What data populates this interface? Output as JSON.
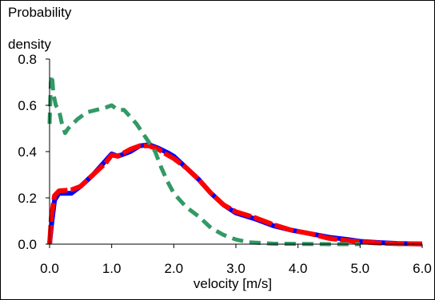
{
  "chart_data": {
    "type": "line",
    "title": "",
    "ylabel_lines": [
      "Probability",
      "density"
    ],
    "xlabel": "velocity [m/s]",
    "xlim": [
      0.0,
      6.0
    ],
    "ylim": [
      0.0,
      0.8
    ],
    "x_ticks": [
      "0.0",
      "1.0",
      "2.0",
      "3.0",
      "4.0",
      "5.0",
      "6.0"
    ],
    "y_ticks": [
      "0.0",
      "0.2",
      "0.4",
      "0.6",
      "0.8"
    ],
    "grid": false,
    "series": [
      {
        "color": "#0000ff",
        "style": "solid",
        "points": [
          [
            0.0,
            0.0
          ],
          [
            0.03,
            0.08
          ],
          [
            0.08,
            0.19
          ],
          [
            0.15,
            0.22
          ],
          [
            0.35,
            0.22
          ],
          [
            0.5,
            0.25
          ],
          [
            0.7,
            0.3
          ],
          [
            0.9,
            0.36
          ],
          [
            1.0,
            0.39
          ],
          [
            1.1,
            0.38
          ],
          [
            1.2,
            0.39
          ],
          [
            1.3,
            0.4
          ],
          [
            1.45,
            0.425
          ],
          [
            1.6,
            0.43
          ],
          [
            1.75,
            0.415
          ],
          [
            1.9,
            0.395
          ],
          [
            2.0,
            0.38
          ],
          [
            2.2,
            0.33
          ],
          [
            2.4,
            0.28
          ],
          [
            2.6,
            0.22
          ],
          [
            2.8,
            0.17
          ],
          [
            3.0,
            0.135
          ],
          [
            3.3,
            0.11
          ],
          [
            3.6,
            0.08
          ],
          [
            3.9,
            0.06
          ],
          [
            4.2,
            0.045
          ],
          [
            4.5,
            0.03
          ],
          [
            4.8,
            0.02
          ],
          [
            5.0,
            0.012
          ],
          [
            5.3,
            0.007
          ],
          [
            5.6,
            0.003
          ],
          [
            6.0,
            0.001
          ]
        ]
      },
      {
        "color": "#ff0000",
        "style": "dash",
        "points": [
          [
            0.0,
            0.0
          ],
          [
            0.03,
            0.12
          ],
          [
            0.08,
            0.21
          ],
          [
            0.15,
            0.23
          ],
          [
            0.35,
            0.235
          ],
          [
            0.5,
            0.25
          ],
          [
            0.7,
            0.3
          ],
          [
            0.9,
            0.35
          ],
          [
            1.0,
            0.385
          ],
          [
            1.1,
            0.38
          ],
          [
            1.2,
            0.395
          ],
          [
            1.3,
            0.41
          ],
          [
            1.45,
            0.425
          ],
          [
            1.6,
            0.425
          ],
          [
            1.75,
            0.41
          ],
          [
            1.9,
            0.385
          ],
          [
            2.0,
            0.37
          ],
          [
            2.2,
            0.33
          ],
          [
            2.4,
            0.28
          ],
          [
            2.6,
            0.22
          ],
          [
            2.8,
            0.17
          ],
          [
            3.0,
            0.14
          ],
          [
            3.3,
            0.115
          ],
          [
            3.6,
            0.085
          ],
          [
            3.9,
            0.06
          ],
          [
            4.2,
            0.045
          ],
          [
            4.5,
            0.025
          ],
          [
            4.8,
            0.015
          ],
          [
            5.0,
            0.01
          ],
          [
            5.3,
            0.005
          ],
          [
            5.6,
            0.002
          ],
          [
            6.0,
            0.001
          ]
        ]
      },
      {
        "color": "#339966",
        "style": "dash",
        "points": [
          [
            0.0,
            0.52
          ],
          [
            0.02,
            0.7
          ],
          [
            0.04,
            0.73
          ],
          [
            0.06,
            0.65
          ],
          [
            0.1,
            0.6
          ],
          [
            0.15,
            0.58
          ],
          [
            0.2,
            0.52
          ],
          [
            0.25,
            0.48
          ],
          [
            0.3,
            0.5
          ],
          [
            0.45,
            0.54
          ],
          [
            0.6,
            0.57
          ],
          [
            0.75,
            0.58
          ],
          [
            0.9,
            0.59
          ],
          [
            1.0,
            0.6
          ],
          [
            1.1,
            0.58
          ],
          [
            1.2,
            0.58
          ],
          [
            1.3,
            0.55
          ],
          [
            1.4,
            0.52
          ],
          [
            1.5,
            0.48
          ],
          [
            1.6,
            0.44
          ],
          [
            1.7,
            0.4
          ],
          [
            1.8,
            0.33
          ],
          [
            1.9,
            0.27
          ],
          [
            2.0,
            0.22
          ],
          [
            2.2,
            0.16
          ],
          [
            2.4,
            0.12
          ],
          [
            2.6,
            0.07
          ],
          [
            2.8,
            0.04
          ],
          [
            3.0,
            0.02
          ],
          [
            3.2,
            0.008
          ],
          [
            3.6,
            0.002
          ],
          [
            4.0,
            0.001
          ],
          [
            4.5,
            0.0
          ],
          [
            5.0,
            0.0
          ]
        ]
      }
    ]
  }
}
